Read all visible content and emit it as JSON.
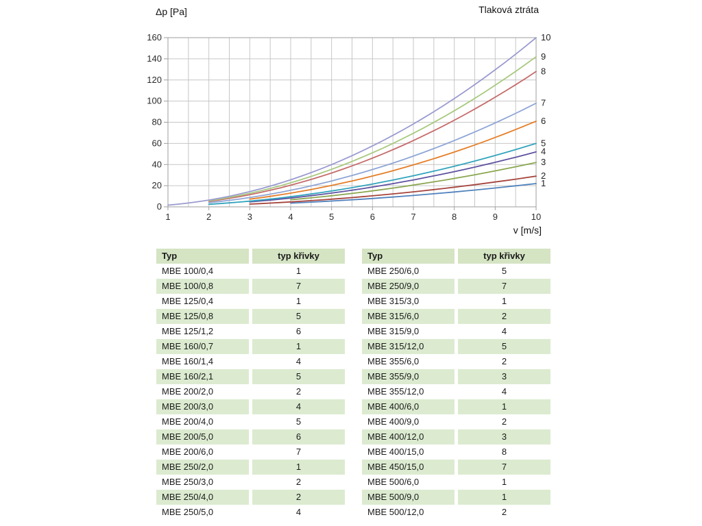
{
  "chart_data": {
    "type": "line",
    "title": "Tlaková ztráta",
    "ylabel": "Δp [Pa]",
    "xlabel": "v [m/s]",
    "xlim": [
      1,
      10
    ],
    "ylim": [
      0,
      160
    ],
    "x_ticks": [
      1,
      2,
      3,
      4,
      5,
      6,
      7,
      8,
      9,
      10
    ],
    "y_ticks": [
      0,
      20,
      40,
      60,
      80,
      100,
      120,
      140,
      160
    ],
    "x_grid_step": 0.5,
    "y_grid_step": 20,
    "grid": true,
    "legend_position": "right-edge-labels",
    "grid_color": "#c6c6c6",
    "frame_color": "#9e9e9e",
    "series": [
      {
        "name": "1",
        "color": "#4f81bd",
        "k": 0.22,
        "v_start": 4,
        "x": [
          4,
          5,
          6,
          7,
          8,
          9,
          10
        ],
        "values": [
          3.5,
          5.5,
          7.9,
          10.8,
          14.1,
          17.8,
          22
        ]
      },
      {
        "name": "2",
        "color": "#a5433b",
        "k": 0.29,
        "v_start": 3,
        "x": [
          3,
          4,
          5,
          6,
          7,
          8,
          9,
          10
        ],
        "values": [
          2.6,
          4.6,
          7.3,
          10.4,
          14.2,
          18.6,
          23.5,
          29
        ]
      },
      {
        "name": "3",
        "color": "#8aa64f",
        "k": 0.42,
        "v_start": 4,
        "x": [
          4,
          5,
          6,
          7,
          8,
          9,
          10
        ],
        "values": [
          6.7,
          10.5,
          15.1,
          20.6,
          26.9,
          34,
          42
        ]
      },
      {
        "name": "4",
        "color": "#5d51a1",
        "k": 0.52,
        "v_start": 3,
        "x": [
          3,
          4,
          5,
          6,
          7,
          8,
          9,
          10
        ],
        "values": [
          4.7,
          8.3,
          13,
          18.7,
          25.5,
          33.3,
          42.1,
          52
        ]
      },
      {
        "name": "5",
        "color": "#31a3bd",
        "k": 0.6,
        "v_start": 2,
        "x": [
          2,
          3,
          4,
          5,
          6,
          7,
          8,
          9,
          10
        ],
        "values": [
          2.4,
          5.4,
          9.6,
          15,
          21.6,
          29.4,
          38.4,
          48.6,
          60
        ]
      },
      {
        "name": "6",
        "color": "#e57d26",
        "k": 0.81,
        "v_start": 3,
        "x": [
          3,
          4,
          5,
          6,
          7,
          8,
          9,
          10
        ],
        "values": [
          7.3,
          13,
          20.3,
          29.2,
          39.7,
          51.8,
          65.6,
          81
        ]
      },
      {
        "name": "7",
        "color": "#8ea5d6",
        "k": 0.98,
        "v_start": 2,
        "x": [
          2,
          3,
          4,
          5,
          6,
          7,
          8,
          9,
          10
        ],
        "values": [
          3.9,
          8.8,
          15.7,
          24.5,
          35.3,
          48,
          62.7,
          79.4,
          98
        ]
      },
      {
        "name": "8",
        "color": "#c66a6a",
        "k": 1.28,
        "v_start": 2,
        "x": [
          2,
          3,
          4,
          5,
          6,
          7,
          8,
          9,
          10
        ],
        "values": [
          5.1,
          11.5,
          20.5,
          32,
          46.1,
          62.7,
          81.9,
          103.7,
          128
        ]
      },
      {
        "name": "9",
        "color": "#a8c97f",
        "k": 1.42,
        "v_start": 2,
        "x": [
          2,
          3,
          4,
          5,
          6,
          7,
          8,
          9,
          10
        ],
        "values": [
          5.7,
          12.8,
          22.7,
          35.5,
          51.1,
          69.6,
          90.9,
          115,
          142
        ]
      },
      {
        "name": "10",
        "color": "#9a9ad1",
        "k": 1.6,
        "v_start": 1,
        "x": [
          1,
          2,
          3,
          4,
          5,
          6,
          7,
          8,
          9,
          10
        ],
        "values": [
          1.6,
          6.4,
          14.4,
          25.6,
          40,
          57.6,
          78.4,
          102.4,
          129.6,
          160
        ]
      }
    ]
  },
  "tables": [
    {
      "headers": [
        "Typ",
        "typ křivky"
      ],
      "rows": [
        [
          "MBE 100/0,4",
          "1"
        ],
        [
          "MBE 100/0,8",
          "7"
        ],
        [
          "MBE 125/0,4",
          "1"
        ],
        [
          "MBE 125/0,8",
          "5"
        ],
        [
          "MBE 125/1,2",
          "6"
        ],
        [
          "MBE 160/0,7",
          "1"
        ],
        [
          "MBE 160/1,4",
          "4"
        ],
        [
          "MBE 160/2,1",
          "5"
        ],
        [
          "MBE 200/2,0",
          "2"
        ],
        [
          "MBE 200/3,0",
          "4"
        ],
        [
          "MBE 200/4,0",
          "5"
        ],
        [
          "MBE 200/5,0",
          "6"
        ],
        [
          "MBE 200/6,0",
          "7"
        ],
        [
          "MBE 250/2,0",
          "1"
        ],
        [
          "MBE 250/3,0",
          "2"
        ],
        [
          "MBE 250/4,0",
          "2"
        ],
        [
          "MBE 250/5,0",
          "4"
        ]
      ]
    },
    {
      "headers": [
        "Typ",
        "typ křivky"
      ],
      "rows": [
        [
          "MBE 250/6,0",
          "5"
        ],
        [
          "MBE 250/9,0",
          "7"
        ],
        [
          "MBE 315/3,0",
          "1"
        ],
        [
          "MBE 315/6,0",
          "2"
        ],
        [
          "MBE 315/9,0",
          "4"
        ],
        [
          "MBE 315/12,0",
          "5"
        ],
        [
          "MBE 355/6,0",
          "2"
        ],
        [
          "MBE 355/9,0",
          "3"
        ],
        [
          "MBE 355/12,0",
          "4"
        ],
        [
          "MBE 400/6,0",
          "1"
        ],
        [
          "MBE 400/9,0",
          "2"
        ],
        [
          "MBE 400/12,0",
          "3"
        ],
        [
          "MBE 400/15,0",
          "8"
        ],
        [
          "MBE 450/15,0",
          "7"
        ],
        [
          "MBE 500/6,0",
          "1"
        ],
        [
          "MBE 500/9,0",
          "1"
        ],
        [
          "MBE 500/12,0",
          "2"
        ]
      ]
    }
  ]
}
